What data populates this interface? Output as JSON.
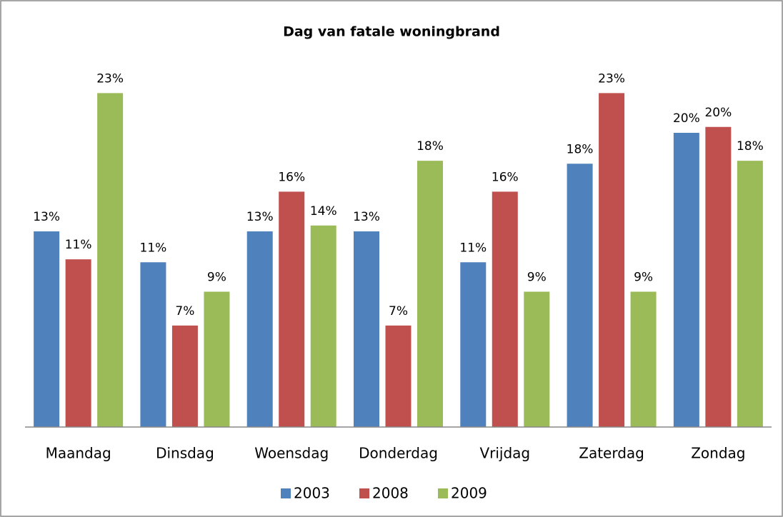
{
  "chart_data": {
    "type": "bar",
    "title": "Dag van fatale woningbrand",
    "categories": [
      "Maandag",
      "Dinsdag",
      "Woensdag",
      "Donderdag",
      "Vrijdag",
      "Zaterdag",
      "Zondag"
    ],
    "series": [
      {
        "name": "2003",
        "color": "#4f81bd",
        "values": [
          13.3,
          11.2,
          13.3,
          13.3,
          11.2,
          17.9,
          20.0
        ],
        "value_labels": [
          "13%",
          "11%",
          "13%",
          "13%",
          "11%",
          "18%",
          "20%"
        ]
      },
      {
        "name": "2008",
        "color": "#c0504d",
        "values": [
          11.4,
          6.9,
          16.0,
          6.9,
          16.0,
          22.7,
          20.4
        ],
        "value_labels": [
          "11%",
          "7%",
          "16%",
          "7%",
          "16%",
          "23%",
          "20%"
        ]
      },
      {
        "name": "2009",
        "color": "#9bbb59",
        "values": [
          22.7,
          9.2,
          13.7,
          18.1,
          9.2,
          9.2,
          18.1
        ],
        "value_labels": [
          "23%",
          "9%",
          "14%",
          "18%",
          "9%",
          "9%",
          "18%"
        ]
      }
    ],
    "ylim": [
      0,
      25
    ],
    "legend": "bottom"
  }
}
